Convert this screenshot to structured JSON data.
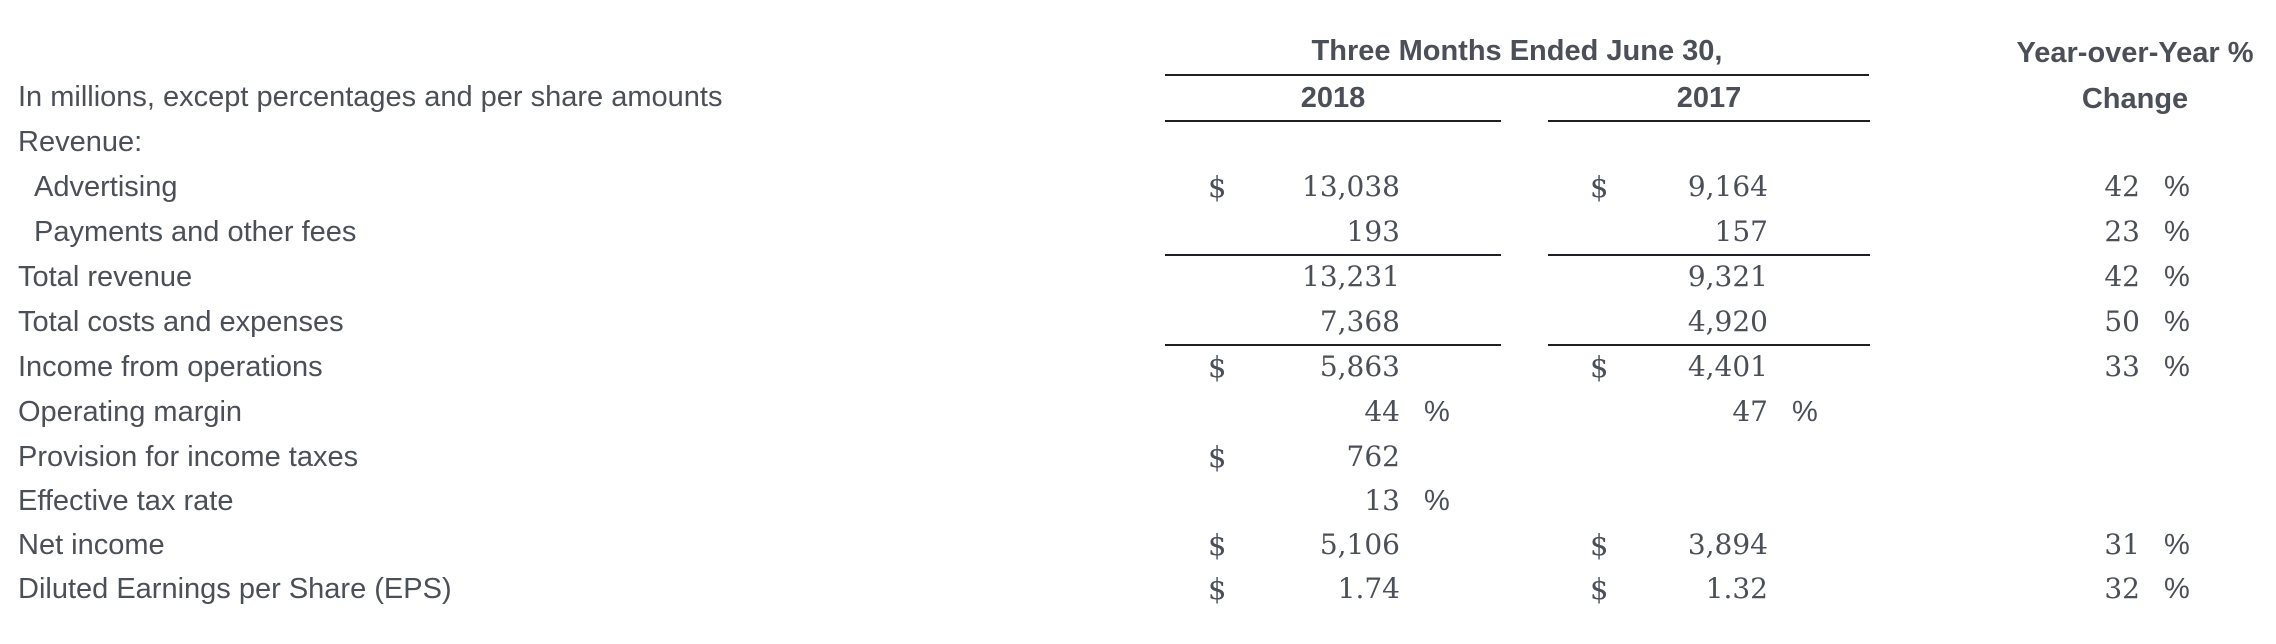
{
  "header": {
    "group_title": "Three Months Ended June 30,",
    "year_1": "2018",
    "year_2": "2017",
    "yoy_line1": "Year-over-Year %",
    "yoy_line2": "Change",
    "units_note": "In millions, except percentages and per share amounts"
  },
  "symbols": {
    "dollar": "$",
    "percent": "%"
  },
  "rows": [
    {
      "label": "Revenue:"
    },
    {
      "label": "Advertising",
      "v2018": "13,038",
      "v2017": "9,164",
      "yoy": "42"
    },
    {
      "label": "Payments and other fees",
      "v2018": "193",
      "v2017": "157",
      "yoy": "23"
    },
    {
      "label": "Total revenue",
      "v2018": "13,231",
      "v2017": "9,321",
      "yoy": "42"
    },
    {
      "label": "Total costs and expenses",
      "v2018": "7,368",
      "v2017": "4,920",
      "yoy": "50"
    },
    {
      "label": "Income from operations",
      "v2018": "5,863",
      "v2017": "4,401",
      "yoy": "33"
    },
    {
      "label": "Operating margin",
      "v2018": "44",
      "v2017": "47"
    },
    {
      "label": "Provision for income taxes",
      "v2018": "762"
    },
    {
      "label": "Effective tax rate",
      "v2018": "13"
    },
    {
      "label": "Net income",
      "v2018": "5,106",
      "v2017": "3,894",
      "yoy": "31"
    },
    {
      "label": "Diluted Earnings per Share (EPS)",
      "v2018": "1.74",
      "v2017": "1.32",
      "yoy": "32"
    }
  ]
}
